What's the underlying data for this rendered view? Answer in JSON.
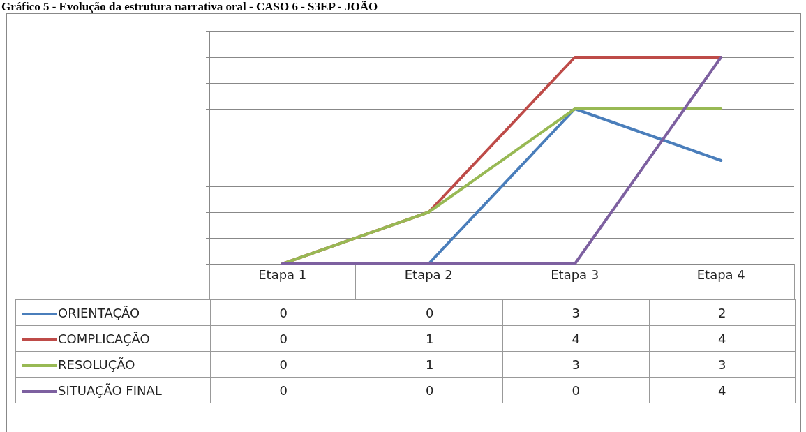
{
  "chart_data": {
    "type": "line",
    "title": "Gráfico 5 - Evolução da estrutura narrativa oral - CASO 6 - S3EP - JOÃO",
    "categories": [
      "Etapa 1",
      "Etapa 2",
      "Etapa 3",
      "Etapa 4"
    ],
    "series": [
      {
        "name": "ORIENTAÇÃO",
        "color": "#4a7ebb",
        "values": [
          0,
          0,
          3,
          2
        ]
      },
      {
        "name": "COMPLICAÇÃO",
        "color": "#be4b48",
        "values": [
          0,
          1,
          4,
          4
        ]
      },
      {
        "name": "RESOLUÇÃO",
        "color": "#98b954",
        "values": [
          0,
          1,
          3,
          3
        ]
      },
      {
        "name": "SITUAÇÃO FINAL",
        "color": "#7d60a0",
        "values": [
          0,
          0,
          0,
          4
        ]
      }
    ],
    "ylim": [
      0,
      4.5
    ],
    "yticks": [
      {
        "value": 0,
        "label": null
      },
      {
        "value": 0.5,
        "label": null
      },
      {
        "value": 1,
        "label": null
      },
      {
        "value": 1.5,
        "label": null
      },
      {
        "value": 2,
        "label": null
      },
      {
        "value": 2.5,
        "label": null
      },
      {
        "value": 3,
        "label": null
      },
      {
        "value": 3.5,
        "label": null
      },
      {
        "value": 4,
        "label": null
      },
      {
        "value": 4.5,
        "label": null
      }
    ],
    "tick_labels": "x",
    "grid": "y",
    "legend": "bottom",
    "data_labels": true,
    "marker": "none",
    "line_style": "solid"
  }
}
